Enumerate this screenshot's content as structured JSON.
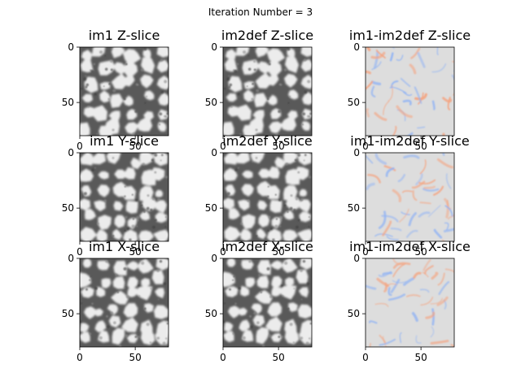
{
  "figure": {
    "suptitle": "Iteration Number = 3"
  },
  "chart_data": [
    {
      "type": "heatmap",
      "title": "im1 Z-slice",
      "colormap": "gray",
      "xlim": [
        0,
        80
      ],
      "ylim": [
        80,
        0
      ],
      "xticks": [
        0,
        50
      ],
      "yticks": [
        0,
        50
      ],
      "grid": false
    },
    {
      "type": "heatmap",
      "title": "im2def Z-slice",
      "colormap": "gray",
      "xlim": [
        0,
        80
      ],
      "ylim": [
        80,
        0
      ],
      "xticks": [
        0,
        50
      ],
      "yticks": [
        0,
        50
      ],
      "grid": false
    },
    {
      "type": "heatmap",
      "title": "im1-im2def Z-slice",
      "colormap": "coolwarm",
      "xlim": [
        0,
        80
      ],
      "ylim": [
        80,
        0
      ],
      "xticks": [
        0,
        50
      ],
      "yticks": [
        0,
        50
      ],
      "grid": false
    },
    {
      "type": "heatmap",
      "title": "im1 Y-slice",
      "colormap": "gray",
      "xlim": [
        0,
        80
      ],
      "ylim": [
        80,
        0
      ],
      "xticks": [
        0,
        50
      ],
      "yticks": [
        0,
        50
      ],
      "grid": false
    },
    {
      "type": "heatmap",
      "title": "im2def Y-slice",
      "colormap": "gray",
      "xlim": [
        0,
        80
      ],
      "ylim": [
        80,
        0
      ],
      "xticks": [
        0,
        50
      ],
      "yticks": [
        0,
        50
      ],
      "grid": false
    },
    {
      "type": "heatmap",
      "title": "im1-im2def Y-slice",
      "colormap": "coolwarm",
      "xlim": [
        0,
        80
      ],
      "ylim": [
        80,
        0
      ],
      "xticks": [
        0,
        50
      ],
      "yticks": [
        0,
        50
      ],
      "grid": false
    },
    {
      "type": "heatmap",
      "title": "im1 X-slice",
      "colormap": "gray",
      "xlim": [
        0,
        80
      ],
      "ylim": [
        80,
        0
      ],
      "xticks": [
        0,
        50
      ],
      "yticks": [
        0,
        50
      ],
      "grid": false
    },
    {
      "type": "heatmap",
      "title": "im2def X-slice",
      "colormap": "gray",
      "xlim": [
        0,
        80
      ],
      "ylim": [
        80,
        0
      ],
      "xticks": [
        0,
        50
      ],
      "yticks": [
        0,
        50
      ],
      "grid": false
    },
    {
      "type": "heatmap",
      "title": "im1-im2def X-slice",
      "colormap": "coolwarm",
      "xlim": [
        0,
        80
      ],
      "ylim": [
        80,
        0
      ],
      "xticks": [
        0,
        50
      ],
      "yticks": [
        0,
        50
      ],
      "grid": false
    }
  ],
  "colors": {
    "gray_dark": "#595959",
    "gray_light": "#ececec",
    "diff_neutral": "#dddddd",
    "diff_positive": "#f4a582",
    "diff_negative": "#92b4f4"
  }
}
